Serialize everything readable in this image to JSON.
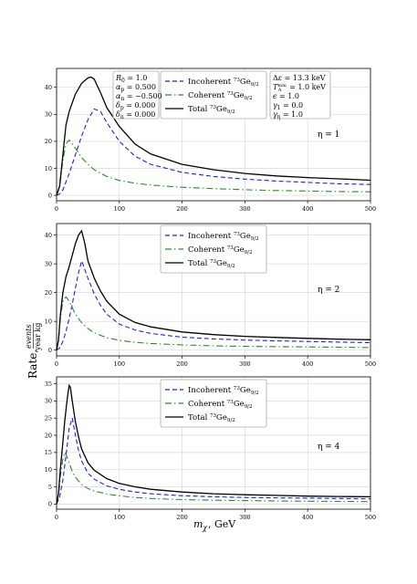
{
  "figure": {
    "ylabel": "Rate, events/(year kg)",
    "xlabel": "m_χ, GeV"
  },
  "info_box_left": [
    "R_0 = 1.0",
    "α_p = 0.500",
    "α_n = −0.500",
    "δ_p = 0.000",
    "δ_n = 0.000"
  ],
  "info_box_right": [
    "Δε = 13.3 keV",
    "T_A^min = 1.0 keV",
    "ε = 1.0",
    "γ_1 = 0.0",
    "γ_η = 1.0"
  ],
  "legend": [
    "Incoherent 73Ge9/2",
    "Coherent 73Ge9/2",
    "Total 73Ge9/2"
  ],
  "colors": {
    "incoherent": "#1f1fe6",
    "coherent": "#2a8a2a",
    "total": "#000000",
    "grid": "#d9d9d9"
  },
  "chart_data": [
    {
      "type": "line",
      "annotation": "η = 1",
      "xlim": [
        0,
        500
      ],
      "ylim": [
        -2,
        47
      ],
      "xticks": [
        0,
        100,
        200,
        300,
        400,
        500
      ],
      "yticks": [
        0,
        10,
        20,
        30,
        40
      ],
      "grid": true,
      "legend_position": "top-center",
      "series": [
        {
          "name": "Incoherent 73Ge9/2",
          "style": "dashed",
          "x": [
            0,
            5,
            10,
            20,
            30,
            40,
            50,
            60,
            70,
            80,
            100,
            125,
            150,
            200,
            250,
            300,
            350,
            400,
            450,
            500
          ],
          "y": [
            0,
            0.5,
            2,
            8,
            15,
            22,
            28,
            32,
            31,
            27,
            20,
            14.5,
            11.5,
            8.5,
            7,
            6,
            5.3,
            4.8,
            4.3,
            4
          ]
        },
        {
          "name": "Coherent 73Ge9/2",
          "style": "dashdot",
          "x": [
            0,
            5,
            10,
            15,
            20,
            30,
            40,
            50,
            60,
            80,
            100,
            125,
            150,
            200,
            250,
            300,
            350,
            400,
            450,
            500
          ],
          "y": [
            0,
            3,
            13,
            19,
            20.5,
            17.5,
            14,
            11.5,
            9.5,
            7,
            5.5,
            4.5,
            3.8,
            3,
            2.5,
            2.1,
            1.8,
            1.6,
            1.4,
            1.3
          ]
        },
        {
          "name": "Total 73Ge9/2",
          "style": "solid",
          "x": [
            0,
            5,
            10,
            15,
            20,
            30,
            40,
            50,
            55,
            60,
            70,
            80,
            100,
            125,
            150,
            200,
            250,
            300,
            350,
            400,
            450,
            500
          ],
          "y": [
            0,
            3.5,
            15,
            26,
            31,
            37.5,
            41.5,
            43.5,
            43.8,
            43,
            38,
            32.5,
            25.5,
            19,
            15.3,
            11.5,
            9.5,
            8.1,
            7.2,
            6.6,
            6.1,
            5.6
          ]
        }
      ]
    },
    {
      "type": "line",
      "annotation": "η = 2",
      "xlim": [
        0,
        500
      ],
      "ylim": [
        -2,
        44
      ],
      "xticks": [
        0,
        100,
        200,
        300,
        400,
        500
      ],
      "yticks": [
        0,
        10,
        20,
        30,
        40
      ],
      "grid": true,
      "legend_position": "top-center",
      "series": [
        {
          "name": "Incoherent 73Ge9/2",
          "style": "dashed",
          "x": [
            0,
            5,
            10,
            15,
            20,
            25,
            30,
            35,
            40,
            50,
            60,
            70,
            80,
            100,
            125,
            150,
            200,
            250,
            300,
            350,
            400,
            450,
            500
          ],
          "y": [
            0,
            0.8,
            3,
            6.5,
            11,
            16,
            21.5,
            27,
            31,
            25,
            19.5,
            15.5,
            12.5,
            9,
            7,
            5.8,
            4.5,
            3.9,
            3.5,
            3.2,
            3,
            2.8,
            2.6
          ]
        },
        {
          "name": "Coherent 73Ge9/2",
          "style": "dashdot",
          "x": [
            0,
            3,
            6,
            10,
            15,
            20,
            30,
            40,
            50,
            60,
            80,
            100,
            125,
            150,
            200,
            250,
            300,
            350,
            400,
            450,
            500
          ],
          "y": [
            0,
            3,
            11,
            17,
            18.5,
            17,
            12.5,
            9.5,
            7.5,
            6,
            4.3,
            3.4,
            2.7,
            2.3,
            1.8,
            1.5,
            1.3,
            1.2,
            1.1,
            1,
            0.9
          ]
        },
        {
          "name": "Total 73Ge9/2",
          "style": "solid",
          "x": [
            0,
            3,
            6,
            10,
            15,
            20,
            25,
            30,
            35,
            40,
            45,
            50,
            60,
            70,
            80,
            100,
            125,
            150,
            200,
            250,
            300,
            350,
            400,
            450,
            500
          ],
          "y": [
            0,
            3.5,
            12,
            20,
            25.5,
            29,
            33,
            37,
            40,
            41.5,
            37,
            31,
            25,
            20.5,
            17,
            12.5,
            9.6,
            8.1,
            6.3,
            5.4,
            4.8,
            4.4,
            4.1,
            3.8,
            3.6
          ]
        }
      ]
    },
    {
      "type": "line",
      "annotation": "η = 4",
      "xlim": [
        0,
        500
      ],
      "ylim": [
        -1.5,
        37
      ],
      "xticks": [
        0,
        100,
        200,
        300,
        400,
        500
      ],
      "yticks": [
        0,
        5,
        10,
        15,
        20,
        25,
        30,
        35
      ],
      "grid": true,
      "legend_position": "top-center",
      "series": [
        {
          "name": "Incoherent 73Ge9/2",
          "style": "dashed",
          "x": [
            0,
            5,
            10,
            15,
            20,
            25,
            30,
            35,
            40,
            50,
            60,
            80,
            100,
            125,
            150,
            200,
            250,
            300,
            350,
            400,
            450,
            500
          ],
          "y": [
            0,
            2,
            7,
            14,
            22,
            25,
            20,
            15.5,
            12.5,
            9,
            7.2,
            5.3,
            4.3,
            3.5,
            3,
            2.4,
            2.1,
            1.9,
            1.8,
            1.7,
            1.6,
            1.5
          ]
        },
        {
          "name": "Coherent 73Ge9/2",
          "style": "dashdot",
          "x": [
            0,
            3,
            6,
            10,
            13,
            16,
            20,
            25,
            30,
            40,
            50,
            60,
            80,
            100,
            125,
            150,
            200,
            250,
            300,
            350,
            400,
            450,
            500
          ],
          "y": [
            0,
            2.5,
            8,
            13,
            15,
            14,
            12,
            9.5,
            7.8,
            5.7,
            4.5,
            3.8,
            2.9,
            2.4,
            1.9,
            1.6,
            1.3,
            1.1,
            1,
            0.9,
            0.8,
            0.75,
            0.7
          ]
        },
        {
          "name": "Total 73Ge9/2",
          "style": "solid",
          "x": [
            0,
            3,
            6,
            10,
            13,
            16,
            18,
            20,
            22,
            25,
            30,
            35,
            40,
            50,
            60,
            80,
            100,
            125,
            150,
            200,
            250,
            300,
            350,
            400,
            450,
            500
          ],
          "y": [
            0,
            3,
            10,
            18,
            24,
            29,
            32,
            34.5,
            34,
            30,
            24,
            19.5,
            16,
            12,
            9.8,
            7.4,
            6,
            5,
            4.3,
            3.5,
            3,
            2.7,
            2.5,
            2.3,
            2.2,
            2.1
          ]
        }
      ]
    }
  ]
}
